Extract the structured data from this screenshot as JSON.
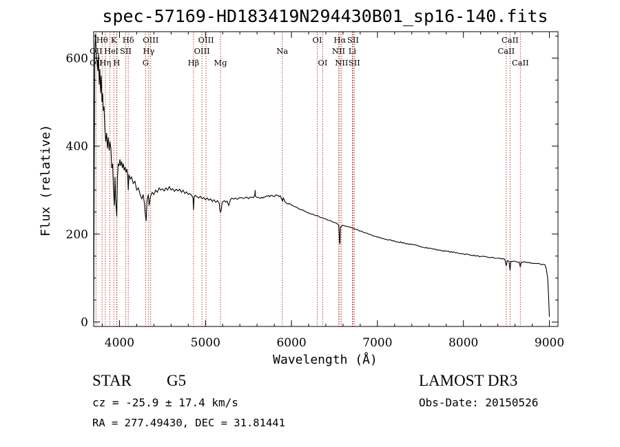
{
  "chart_data": {
    "type": "line",
    "title": "spec-57169-HD183419N294430B01_sp16-140.fits",
    "xlabel": "Wavelength (Å)",
    "ylabel": "Flux (relative)",
    "xlim": [
      3700,
      9100
    ],
    "ylim": [
      -10,
      660
    ],
    "x_ticks": [
      4000,
      5000,
      6000,
      7000,
      8000,
      9000
    ],
    "y_ticks": [
      0,
      200,
      400,
      600
    ],
    "series": [
      {
        "name": "flux",
        "points": [
          [
            3700,
            5
          ],
          [
            3705,
            280
          ],
          [
            3712,
            610
          ],
          [
            3722,
            655
          ],
          [
            3732,
            600
          ],
          [
            3740,
            590
          ],
          [
            3748,
            570
          ],
          [
            3756,
            610
          ],
          [
            3764,
            540
          ],
          [
            3772,
            575
          ],
          [
            3780,
            520
          ],
          [
            3788,
            560
          ],
          [
            3796,
            500
          ],
          [
            3804,
            520
          ],
          [
            3812,
            480
          ],
          [
            3820,
            490
          ],
          [
            3830,
            440
          ],
          [
            3840,
            410
          ],
          [
            3850,
            430
          ],
          [
            3860,
            395
          ],
          [
            3870,
            420
          ],
          [
            3880,
            390
          ],
          [
            3890,
            410
          ],
          [
            3900,
            395
          ],
          [
            3910,
            350
          ],
          [
            3920,
            360
          ],
          [
            3930,
            300
          ],
          [
            3940,
            265
          ],
          [
            3948,
            330
          ],
          [
            3955,
            280
          ],
          [
            3962,
            260
          ],
          [
            3968,
            240
          ],
          [
            3975,
            320
          ],
          [
            3985,
            360
          ],
          [
            3995,
            355
          ],
          [
            4005,
            370
          ],
          [
            4015,
            355
          ],
          [
            4025,
            365
          ],
          [
            4035,
            350
          ],
          [
            4045,
            360
          ],
          [
            4055,
            345
          ],
          [
            4065,
            352
          ],
          [
            4075,
            340
          ],
          [
            4085,
            348
          ],
          [
            4095,
            335
          ],
          [
            4102,
            300
          ],
          [
            4110,
            335
          ],
          [
            4125,
            325
          ],
          [
            4140,
            330
          ],
          [
            4160,
            315
          ],
          [
            4180,
            320
          ],
          [
            4200,
            300
          ],
          [
            4220,
            305
          ],
          [
            4240,
            290
          ],
          [
            4260,
            280
          ],
          [
            4275,
            290
          ],
          [
            4290,
            270
          ],
          [
            4300,
            245
          ],
          [
            4310,
            230
          ],
          [
            4320,
            275
          ],
          [
            4335,
            290
          ],
          [
            4345,
            265
          ],
          [
            4360,
            285
          ],
          [
            4380,
            295
          ],
          [
            4400,
            290
          ],
          [
            4420,
            300
          ],
          [
            4440,
            295
          ],
          [
            4460,
            305
          ],
          [
            4480,
            300
          ],
          [
            4500,
            303
          ],
          [
            4520,
            298
          ],
          [
            4540,
            305
          ],
          [
            4560,
            300
          ],
          [
            4580,
            308
          ],
          [
            4600,
            300
          ],
          [
            4620,
            303
          ],
          [
            4640,
            297
          ],
          [
            4660,
            302
          ],
          [
            4680,
            298
          ],
          [
            4700,
            302
          ],
          [
            4720,
            295
          ],
          [
            4740,
            300
          ],
          [
            4760,
            292
          ],
          [
            4780,
            296
          ],
          [
            4800,
            290
          ],
          [
            4820,
            292
          ],
          [
            4840,
            288
          ],
          [
            4855,
            282
          ],
          [
            4861,
            255
          ],
          [
            4867,
            283
          ],
          [
            4880,
            288
          ],
          [
            4900,
            285
          ],
          [
            4920,
            282
          ],
          [
            4940,
            286
          ],
          [
            4960,
            280
          ],
          [
            4980,
            283
          ],
          [
            5000,
            278
          ],
          [
            5020,
            282
          ],
          [
            5040,
            277
          ],
          [
            5060,
            280
          ],
          [
            5080,
            274
          ],
          [
            5100,
            278
          ],
          [
            5120,
            272
          ],
          [
            5140,
            276
          ],
          [
            5160,
            270
          ],
          [
            5167,
            255
          ],
          [
            5175,
            250
          ],
          [
            5183,
            255
          ],
          [
            5195,
            272
          ],
          [
            5220,
            276
          ],
          [
            5250,
            275
          ],
          [
            5270,
            265
          ],
          [
            5290,
            278
          ],
          [
            5320,
            280
          ],
          [
            5350,
            282
          ],
          [
            5380,
            280
          ],
          [
            5410,
            283
          ],
          [
            5440,
            281
          ],
          [
            5470,
            284
          ],
          [
            5500,
            280
          ],
          [
            5530,
            284
          ],
          [
            5560,
            283
          ],
          [
            5575,
            290
          ],
          [
            5578,
            300
          ],
          [
            5581,
            286
          ],
          [
            5600,
            283
          ],
          [
            5640,
            281
          ],
          [
            5680,
            284
          ],
          [
            5720,
            286
          ],
          [
            5760,
            288
          ],
          [
            5800,
            285
          ],
          [
            5840,
            288
          ],
          [
            5870,
            287
          ],
          [
            5890,
            278
          ],
          [
            5896,
            275
          ],
          [
            5905,
            282
          ],
          [
            5930,
            272
          ],
          [
            5960,
            268
          ],
          [
            6000,
            266
          ],
          [
            6040,
            262
          ],
          [
            6080,
            258
          ],
          [
            6120,
            255
          ],
          [
            6160,
            252
          ],
          [
            6200,
            248
          ],
          [
            6240,
            245
          ],
          [
            6280,
            242
          ],
          [
            6320,
            240
          ],
          [
            6360,
            237
          ],
          [
            6400,
            234
          ],
          [
            6440,
            231
          ],
          [
            6480,
            228
          ],
          [
            6520,
            225
          ],
          [
            6550,
            220
          ],
          [
            6560,
            180
          ],
          [
            6565,
            178
          ],
          [
            6570,
            215
          ],
          [
            6600,
            220
          ],
          [
            6640,
            218
          ],
          [
            6680,
            216
          ],
          [
            6720,
            213
          ],
          [
            6760,
            210
          ],
          [
            6800,
            207
          ],
          [
            6850,
            203
          ],
          [
            6900,
            200
          ],
          [
            6950,
            196
          ],
          [
            7000,
            193
          ],
          [
            7100,
            188
          ],
          [
            7200,
            184
          ],
          [
            7300,
            180
          ],
          [
            7400,
            176
          ],
          [
            7500,
            172
          ],
          [
            7600,
            168
          ],
          [
            7700,
            164
          ],
          [
            7800,
            161
          ],
          [
            7900,
            158
          ],
          [
            8000,
            155
          ],
          [
            8100,
            152
          ],
          [
            8200,
            149
          ],
          [
            8300,
            147
          ],
          [
            8400,
            145
          ],
          [
            8480,
            143
          ],
          [
            8498,
            128
          ],
          [
            8510,
            140
          ],
          [
            8530,
            138
          ],
          [
            8542,
            118
          ],
          [
            8552,
            138
          ],
          [
            8600,
            138
          ],
          [
            8650,
            136
          ],
          [
            8662,
            125
          ],
          [
            8672,
            136
          ],
          [
            8750,
            135
          ],
          [
            8850,
            133
          ],
          [
            8930,
            131
          ],
          [
            8950,
            130
          ],
          [
            8965,
            120
          ],
          [
            8980,
            100
          ],
          [
            8990,
            60
          ],
          [
            9000,
            12
          ]
        ]
      }
    ],
    "spectral_lines": [
      {
        "label": "Hθ",
        "x": 3798,
        "row": 0
      },
      {
        "label": "K",
        "x": 3934,
        "row": 0
      },
      {
        "label": "Hδ",
        "x": 4102,
        "row": 0
      },
      {
        "label": "OIII",
        "x": 4363,
        "row": 0
      },
      {
        "label": "OIII",
        "x": 5007,
        "row": 0
      },
      {
        "label": "OI",
        "x": 6300,
        "row": 0
      },
      {
        "label": "Hα",
        "x": 6563,
        "row": 0
      },
      {
        "label": "SII",
        "x": 6716,
        "row": 0
      },
      {
        "label": "CaII",
        "x": 8542,
        "row": 0
      },
      {
        "label": "OII",
        "x": 3727,
        "row": 1
      },
      {
        "label": "He",
        "x": 3889,
        "row": 1
      },
      {
        "label": "I",
        "x": 3970,
        "row": 1
      },
      {
        "label": "SII",
        "x": 4072,
        "row": 1
      },
      {
        "label": "Hγ",
        "x": 4340,
        "row": 1
      },
      {
        "label": "OIII",
        "x": 4959,
        "row": 1
      },
      {
        "label": "Na",
        "x": 5893,
        "row": 1
      },
      {
        "label": "NII",
        "x": 6548,
        "row": 1
      },
      {
        "label": "Li",
        "x": 6708,
        "row": 1
      },
      {
        "label": "CaII",
        "x": 8498,
        "row": 1
      },
      {
        "label": "OII",
        "x": 3727,
        "row": 2
      },
      {
        "label": "Hη",
        "x": 3835,
        "row": 2
      },
      {
        "label": "H",
        "x": 3968,
        "row": 2
      },
      {
        "label": "G",
        "x": 4304,
        "row": 2
      },
      {
        "label": "Hβ",
        "x": 4861,
        "row": 2
      },
      {
        "label": "Mg",
        "x": 5175,
        "row": 2
      },
      {
        "label": "OI",
        "x": 6364,
        "row": 2
      },
      {
        "label": "NII",
        "x": 6583,
        "row": 2
      },
      {
        "label": "SII",
        "x": 6731,
        "row": 2
      },
      {
        "label": "CaII",
        "x": 8662,
        "row": 2
      }
    ],
    "line_color": "#000000",
    "marker_color": "#b22222"
  },
  "info": {
    "object_class": "STAR",
    "subclass": "G5",
    "survey": "LAMOST DR3",
    "redshift_text": "cz = -25.9 ± 17.4 km/s",
    "obs_date_text": "Obs-Date: 20150526",
    "coords_text": "RA = 277.49430, DEC =  31.81441"
  }
}
